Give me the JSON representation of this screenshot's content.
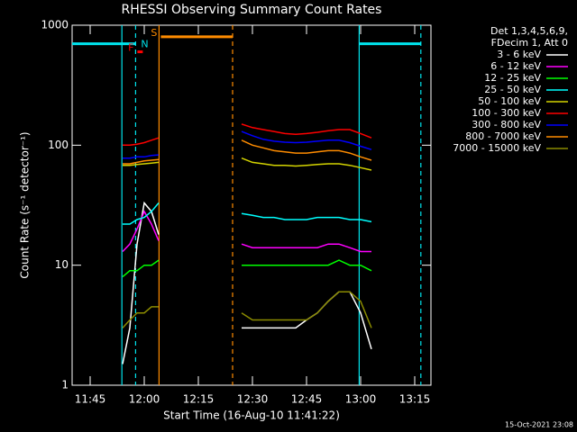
{
  "chart_data": {
    "type": "line",
    "title": "RHESSI Observing Summary Count Rates",
    "x_label": "Start Time (16-Aug-10 11:41:22)",
    "y_label": "Count Rate (s⁻¹ detector⁻¹)",
    "legend_header": [
      "Det 1,3,4,5,6,9,",
      "FDecim 1, Att 0"
    ],
    "footer": "15-Oct-2021 23:08",
    "log_y": true,
    "xlim": [
      700,
      799.5
    ],
    "xticks": [
      {
        "value": 705,
        "label": "11:45"
      },
      {
        "value": 720,
        "label": "12:00"
      },
      {
        "value": 735,
        "label": "12:15"
      },
      {
        "value": 750,
        "label": "12:30"
      },
      {
        "value": 765,
        "label": "12:45"
      },
      {
        "value": 780,
        "label": "13:00"
      },
      {
        "value": 795,
        "label": "13:15"
      }
    ],
    "ylim": [
      1,
      1000
    ],
    "yticks": [
      1,
      10,
      100,
      1000
    ],
    "x": [
      714,
      716,
      718,
      720,
      722,
      724,
      735,
      747,
      750,
      753,
      756,
      759,
      762,
      765,
      768,
      771,
      774,
      777,
      780,
      783
    ],
    "series": [
      {
        "name": "3 - 6 keV",
        "color": "#ffffff",
        "values": [
          1.5,
          3,
          15,
          33,
          28,
          18,
          null,
          3,
          3,
          3,
          3,
          3,
          3,
          3.5,
          4,
          5,
          6,
          6,
          4,
          2
        ]
      },
      {
        "name": "6 - 12 keV",
        "color": "#ff00ff",
        "values": [
          13,
          15,
          20,
          28,
          22,
          16,
          null,
          15,
          14,
          14,
          14,
          14,
          14,
          14,
          14,
          15,
          15,
          14,
          13,
          13
        ]
      },
      {
        "name": "12 - 25 keV",
        "color": "#00ff00",
        "values": [
          8,
          9,
          9,
          10,
          10,
          11,
          null,
          10,
          10,
          10,
          10,
          10,
          10,
          10,
          10,
          10,
          11,
          10,
          10,
          9
        ]
      },
      {
        "name": "25 - 50 keV",
        "color": "#00ffff",
        "values": [
          22,
          22,
          24,
          25,
          28,
          33,
          null,
          27,
          26,
          25,
          25,
          24,
          24,
          24,
          25,
          25,
          25,
          24,
          24,
          23
        ]
      },
      {
        "name": "50 - 100 keV",
        "color": "#d4d400",
        "values": [
          68,
          68,
          69,
          70,
          71,
          72,
          null,
          78,
          72,
          70,
          68,
          68,
          67,
          68,
          69,
          70,
          70,
          68,
          65,
          62
        ]
      },
      {
        "name": "100 - 300 keV",
        "color": "#ff0000",
        "values": [
          100,
          100,
          102,
          105,
          110,
          115,
          null,
          150,
          140,
          135,
          130,
          125,
          123,
          125,
          128,
          132,
          135,
          135,
          125,
          115
        ]
      },
      {
        "name": "300 - 800 keV",
        "color": "#0000ff",
        "values": [
          78,
          78,
          80,
          80,
          82,
          83,
          null,
          130,
          120,
          112,
          108,
          106,
          105,
          106,
          108,
          110,
          110,
          105,
          98,
          92
        ]
      },
      {
        "name": "800 - 7000 keV",
        "color": "#ff8c00",
        "values": [
          70,
          70,
          72,
          74,
          75,
          76,
          null,
          110,
          100,
          95,
          90,
          88,
          86,
          86,
          88,
          90,
          90,
          86,
          80,
          75
        ]
      },
      {
        "name": "7000 - 15000 keV",
        "color": "#8b8b00",
        "values": [
          3,
          3.5,
          4,
          4,
          4.5,
          4.5,
          null,
          4,
          3.5,
          3.5,
          3.5,
          3.5,
          3.5,
          3.5,
          4,
          5,
          6,
          6,
          5,
          3
        ]
      }
    ],
    "flags": [
      {
        "label": "N",
        "color": "#00e5ee",
        "level": 700,
        "intervals": [
          [
            700,
            717.6
          ],
          [
            779.6,
            796.7
          ]
        ],
        "label_side": "right"
      },
      {
        "label": "S",
        "color": "#ff8c00",
        "level": 800,
        "intervals": [
          [
            724.6,
            744.5
          ]
        ],
        "label_side": "left"
      },
      {
        "label": "F",
        "color": "#ff0000",
        "level": 600,
        "intervals": [
          [
            718.1,
            719.6
          ]
        ],
        "label_side": "left"
      }
    ],
    "markers": [
      {
        "x": 713.8,
        "color": "#00e5ee",
        "style": "solid"
      },
      {
        "x": 717.6,
        "color": "#00e5ee",
        "style": "dashed"
      },
      {
        "x": 779.6,
        "color": "#00e5ee",
        "style": "solid"
      },
      {
        "x": 796.7,
        "color": "#00e5ee",
        "style": "dashed"
      },
      {
        "x": 724.1,
        "color": "#ff8c00",
        "style": "solid"
      },
      {
        "x": 744.5,
        "color": "#ff8c00",
        "style": "dashed"
      }
    ]
  }
}
